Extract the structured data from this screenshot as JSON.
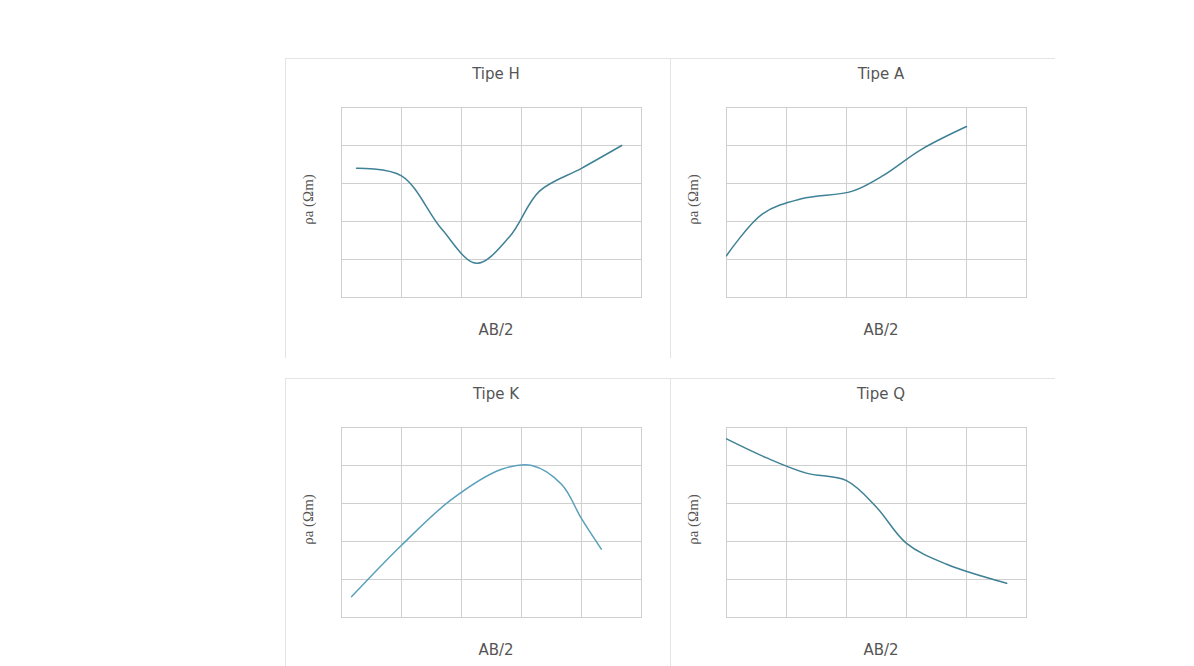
{
  "chart_data": [
    {
      "type": "line",
      "title": "Tipe H",
      "x_label": "AB/2",
      "y_label": "ρa (Ωm)",
      "x": [
        0.25,
        1,
        1.67,
        2.25,
        2.8,
        3.3,
        4,
        4.67
      ],
      "values": [
        3.4,
        3.2,
        1.8,
        0.9,
        1.6,
        2.8,
        3.4,
        4.0
      ],
      "color": "#3f8196",
      "xlim": [
        0,
        5
      ],
      "ylim": [
        0,
        5
      ],
      "xticks": [
        0,
        1,
        2,
        3,
        4,
        5
      ],
      "yticks": [
        0,
        1,
        2,
        3,
        4,
        5
      ],
      "grid": true,
      "tick_labels": false
    },
    {
      "type": "line",
      "title": "Tipe A",
      "x_label": "AB/2",
      "y_label": "ρa (Ωm)",
      "x": [
        0,
        0.6,
        1.25,
        2.1,
        2.6,
        3.25,
        4
      ],
      "values": [
        1.1,
        2.2,
        2.6,
        2.8,
        3.2,
        3.9,
        4.5
      ],
      "color": "#3f8196",
      "xlim": [
        0,
        5
      ],
      "ylim": [
        0,
        5
      ],
      "xticks": [
        0,
        1,
        2,
        3,
        4,
        5
      ],
      "yticks": [
        0,
        1,
        2,
        3,
        4,
        5
      ],
      "grid": true,
      "tick_labels": false
    },
    {
      "type": "line",
      "title": "Tipe K",
      "x_label": "AB/2",
      "y_label": "ρa (Ωm)",
      "x": [
        0.17,
        1,
        1.83,
        2.67,
        3.17,
        3.67,
        4,
        4.33
      ],
      "values": [
        0.55,
        1.9,
        3.1,
        3.9,
        4.0,
        3.5,
        2.6,
        1.8
      ],
      "color": "#5aa0bb",
      "xlim": [
        0,
        5
      ],
      "ylim": [
        0,
        5
      ],
      "xticks": [
        0,
        1,
        2,
        3,
        4,
        5
      ],
      "yticks": [
        0,
        1,
        2,
        3,
        4,
        5
      ],
      "grid": true,
      "tick_labels": false
    },
    {
      "type": "line",
      "title": "Tipe Q",
      "x_label": "AB/2",
      "y_label": "ρa (Ωm)",
      "x": [
        0,
        0.67,
        1.33,
        2,
        2.5,
        3,
        3.67,
        4.67
      ],
      "values": [
        4.7,
        4.2,
        3.8,
        3.6,
        2.9,
        1.95,
        1.4,
        0.9
      ],
      "color": "#3f8196",
      "xlim": [
        0,
        5
      ],
      "ylim": [
        0,
        5
      ],
      "xticks": [
        0,
        1,
        2,
        3,
        4,
        5
      ],
      "yticks": [
        0,
        1,
        2,
        3,
        4,
        5
      ],
      "grid": true,
      "tick_labels": false
    }
  ]
}
